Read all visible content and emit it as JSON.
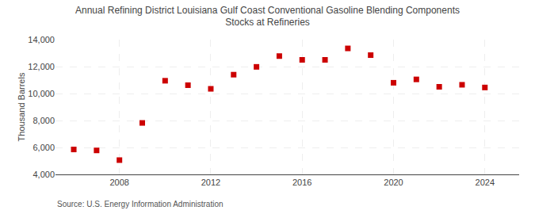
{
  "chart_data": {
    "type": "scatter",
    "title": "Annual Refining District Louisiana Gulf Coast Conventional Gasoline Blending Components\nStocks at Refineries",
    "ylabel": "Thousand Barrels",
    "source": "Source: U.S. Energy Information Administration",
    "x": [
      2006,
      2007,
      2008,
      2009,
      2010,
      2011,
      2012,
      2013,
      2014,
      2015,
      2016,
      2017,
      2018,
      2019,
      2020,
      2021,
      2022,
      2023,
      2024
    ],
    "values": [
      5850,
      5780,
      5060,
      7820,
      10950,
      10620,
      10350,
      11400,
      11980,
      12780,
      12500,
      12500,
      13350,
      12850,
      10800,
      11050,
      10500,
      10650,
      10450
    ],
    "color": "#cc0000",
    "marker": "square",
    "xlim": [
      2005.2,
      2025.5
    ],
    "xticks": [
      2008,
      2012,
      2016,
      2020,
      2024
    ],
    "ylim": [
      4000,
      14000
    ],
    "yticks": [
      {
        "value": 4000,
        "label": "4,000"
      },
      {
        "value": 6000,
        "label": "6,000"
      },
      {
        "value": 8000,
        "label": "8,000"
      },
      {
        "value": 10000,
        "label": "10,000"
      },
      {
        "value": 12000,
        "label": "12,000"
      },
      {
        "value": 14000,
        "label": "14,000"
      }
    ],
    "grid": true
  }
}
